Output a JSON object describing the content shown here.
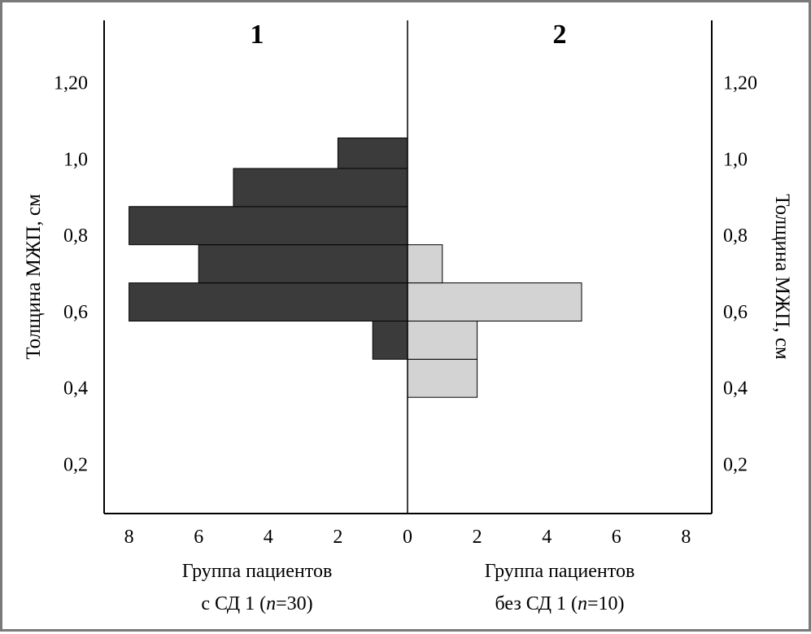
{
  "chart_data": {
    "type": "bar",
    "orientation": "horizontal",
    "layout": "back-to-back population pyramid",
    "ylabel": "Толщина МЖП, см",
    "yticks": [
      "0,2",
      "0,4",
      "0,6",
      "0,8",
      "1,0",
      "1,20"
    ],
    "ytick_values": [
      0.2,
      0.4,
      0.6,
      0.8,
      1.0,
      1.2
    ],
    "ylim": [
      0.06,
      1.33
    ],
    "xticks_left": [
      "8",
      "6",
      "4",
      "2",
      "0"
    ],
    "xticks_right": [
      "2",
      "4",
      "6",
      "8"
    ],
    "xlim": [
      0,
      8
    ],
    "bin_edges": [
      0.375,
      0.475,
      0.575,
      0.675,
      0.775,
      0.875,
      0.975,
      1.055
    ],
    "series": [
      {
        "name": "Группа пациентов с СД 1 (n=30)",
        "panel_label": "1",
        "side": "left",
        "color": "#3b3b3b",
        "values": [
          0,
          1,
          8,
          6,
          8,
          5,
          2
        ]
      },
      {
        "name": "Группа пациентов без СД 1 (n=10)",
        "panel_label": "2",
        "side": "right",
        "color": "#d3d3d3",
        "values": [
          2,
          2,
          5,
          1,
          0,
          0,
          0
        ]
      }
    ],
    "group_labels": {
      "left_line1": "Группа пациентов",
      "left_line2_prefix": "с СД 1 (",
      "left_n": "n",
      "left_line2_suffix": "=30)",
      "right_line1": "Группа пациентов",
      "right_line2_prefix": "без СД 1 (",
      "right_n": "n",
      "right_line2_suffix": "=10)"
    },
    "grid": false,
    "legend": "none"
  }
}
